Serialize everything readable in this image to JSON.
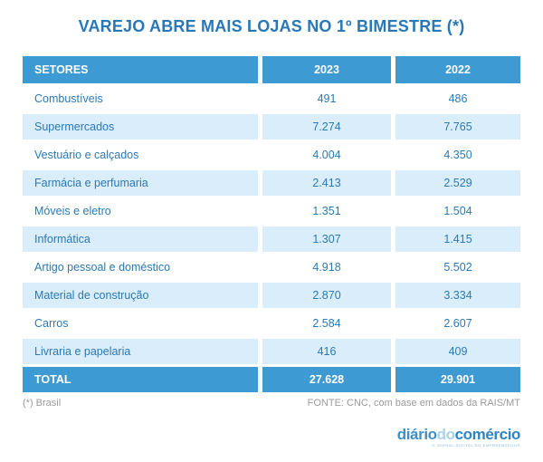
{
  "title": "VAREJO ABRE MAIS LOJAS NO 1º BIMESTRE (*)",
  "table": {
    "headers": [
      "SETORES",
      "2023",
      "2022"
    ],
    "rows": [
      {
        "sector": "Combustíveis",
        "v2023": "491",
        "v2022": "486"
      },
      {
        "sector": "Supermercados",
        "v2023": "7.274",
        "v2022": "7.765"
      },
      {
        "sector": "Vestuário e calçados",
        "v2023": "4.004",
        "v2022": "4.350"
      },
      {
        "sector": "Farmácia e perfumaria",
        "v2023": "2.413",
        "v2022": "2.529"
      },
      {
        "sector": "Móveis e eletro",
        "v2023": "1.351",
        "v2022": "1.504"
      },
      {
        "sector": "Informática",
        "v2023": "1.307",
        "v2022": "1.415"
      },
      {
        "sector": "Artigo pessoal e doméstico",
        "v2023": "4.918",
        "v2022": "5.502"
      },
      {
        "sector": "Material de construção",
        "v2023": "2.870",
        "v2022": "3.334"
      },
      {
        "sector": "Carros",
        "v2023": "2.584",
        "v2022": "2.607"
      },
      {
        "sector": "Livraria e papelaria",
        "v2023": "416",
        "v2022": "409"
      }
    ],
    "total": {
      "label": "TOTAL",
      "v2023": "27.628",
      "v2022": "29.901"
    }
  },
  "footer": {
    "note": "(*) Brasil",
    "source": "FONTE: CNC, com base em dados da RAIS/MT"
  },
  "logo": {
    "part1": "diário",
    "part2": "do",
    "part3": "comércio",
    "tagline": "O JORNAL DIGITAL DO EMPREENDEDOR"
  },
  "colors": {
    "accent_blue": "#3d9ad3",
    "row_light_blue": "#d9edfb",
    "text_blue": "#2b79b5",
    "title_blue": "#2878b7",
    "footer_gray": "#9b9b9b",
    "background": "#ffffff"
  },
  "chart_data": {
    "type": "table",
    "title": "VAREJO ABRE MAIS LOJAS NO 1º BIMESTRE (*)",
    "categories": [
      "Combustíveis",
      "Supermercados",
      "Vestuário e calçados",
      "Farmácia e perfumaria",
      "Móveis e eletro",
      "Informática",
      "Artigo pessoal e doméstico",
      "Material de construção",
      "Carros",
      "Livraria e papelaria"
    ],
    "series": [
      {
        "name": "2023",
        "values": [
          491,
          7274,
          4004,
          2413,
          1351,
          1307,
          4918,
          2870,
          2584,
          416
        ],
        "total": 27628
      },
      {
        "name": "2022",
        "values": [
          486,
          7765,
          4350,
          2529,
          1504,
          1415,
          5502,
          3334,
          2607,
          409
        ],
        "total": 29901
      }
    ],
    "footnote": "(*) Brasil",
    "source": "FONTE: CNC, com base em dados da RAIS/MT"
  }
}
